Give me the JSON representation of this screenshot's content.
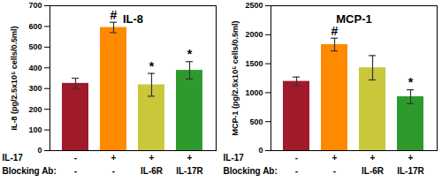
{
  "chart_data": [
    {
      "type": "bar",
      "title": "IL-8",
      "y_label": "IL-8 (pg/2.5x10⁵ cells/0.5ml)",
      "category_rows": [
        {
          "label": "IL-17",
          "values": [
            "-",
            "+",
            "+",
            "+"
          ]
        },
        {
          "label": "Blocking Ab:",
          "values": [
            "-",
            "-",
            "IL-6R",
            "IL-17R"
          ]
        }
      ],
      "values": [
        325,
        595,
        318,
        388
      ],
      "errors": [
        25,
        25,
        55,
        42
      ],
      "significance": [
        null,
        "#",
        "*",
        "*"
      ],
      "colors": [
        "#a01a2a",
        "#ff8a00",
        "#c8c83a",
        "#2e9a2e"
      ],
      "ylim": [
        0,
        700
      ],
      "yticks": [
        0,
        100,
        200,
        300,
        400,
        500,
        600,
        700
      ]
    },
    {
      "type": "bar",
      "title": "MCP-1",
      "y_label": "MCP-1 (pg/2.5x10⁵ cells/0.5ml)",
      "category_rows": [
        {
          "label": "IL-17",
          "values": [
            "-",
            "+",
            "+",
            "+"
          ]
        },
        {
          "label": "Blocking Ab:",
          "values": [
            "-",
            "-",
            "IL-6R",
            "IL-17R"
          ]
        }
      ],
      "values": [
        1195,
        1830,
        1430,
        930
      ],
      "errors": [
        75,
        110,
        210,
        120
      ],
      "significance": [
        null,
        "#",
        null,
        "*"
      ],
      "colors": [
        "#a01a2a",
        "#ff8a00",
        "#c8c83a",
        "#2e9a2e"
      ],
      "ylim": [
        0,
        2500
      ],
      "yticks": [
        0,
        500,
        1000,
        1500,
        2000,
        2500
      ]
    }
  ]
}
